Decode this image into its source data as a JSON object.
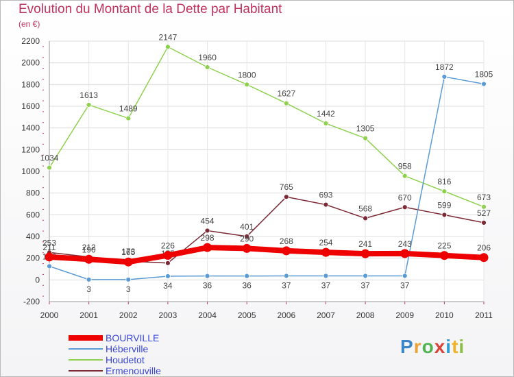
{
  "title": "Evolution du Montant de la Dette par Habitant",
  "unit": "(en €)",
  "logo": "Proxiti",
  "chart_data": {
    "type": "line",
    "x": [
      2000,
      2001,
      2002,
      2003,
      2004,
      2005,
      2006,
      2007,
      2008,
      2009,
      2010,
      2011
    ],
    "ylim": [
      -200,
      2200
    ],
    "yticks": [
      -200,
      0,
      200,
      400,
      600,
      800,
      1000,
      1200,
      1400,
      1600,
      1800,
      2000,
      2200
    ],
    "grid": true,
    "legend_position": "bottom-left",
    "series": [
      {
        "name": "Houdetot",
        "color": "#8fd14f",
        "values": [
          1034,
          1613,
          1489,
          2147,
          1960,
          1800,
          1627,
          1442,
          1305,
          958,
          816,
          673
        ],
        "labels": [
          "1034",
          "1613",
          "1489",
          "2147",
          "1960",
          "1800",
          "1627",
          "1442",
          "1305",
          "958",
          "816",
          "673"
        ]
      },
      {
        "name": "Ermenouville",
        "color": "#7b2a35",
        "values": [
          253,
          212,
          173,
          155,
          454,
          401,
          765,
          693,
          568,
          670,
          599,
          527
        ],
        "labels": [
          "253",
          "212",
          "173",
          "155",
          "454",
          "401",
          "765",
          "693",
          "568",
          "670",
          "599",
          "527"
        ]
      },
      {
        "name": "Héberville",
        "color": "#5b9bd5",
        "values": [
          126,
          3,
          3,
          34,
          36,
          36,
          37,
          37,
          37,
          37,
          1872,
          1805
        ],
        "labels": [
          "126",
          "3",
          "3",
          "34",
          "36",
          "36",
          "37",
          "37",
          "37",
          "37",
          "1872",
          "1805"
        ]
      },
      {
        "name": "BOURVILLE",
        "color": "#ee0000",
        "values": [
          211,
          190,
          165,
          226,
          298,
          290,
          268,
          254,
          241,
          243,
          225,
          206
        ],
        "labels": [
          "211",
          "190",
          "165",
          "226",
          "298",
          "290",
          "268",
          "254",
          "241",
          "243",
          "225",
          "206"
        ]
      }
    ]
  },
  "legend": [
    {
      "label": "BOURVILLE",
      "color": "#ee0000"
    },
    {
      "label": "Héberville",
      "color": "#5b9bd5"
    },
    {
      "label": "Houdetot",
      "color": "#8fd14f"
    },
    {
      "label": "Ermenouville",
      "color": "#7b2a35"
    }
  ]
}
